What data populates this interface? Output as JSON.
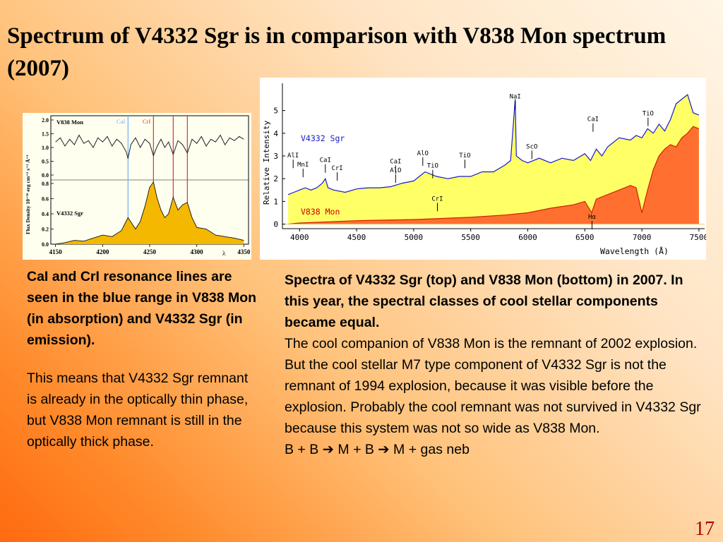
{
  "slide": {
    "title": "Spectrum of  V4332 Sgr is in comparison with V838 Mon spectrum (2007)",
    "number": "17"
  },
  "left_text": {
    "bold": "CaI  and CrI resonance lines are seen in the blue range in V838 Mon (in absorption) and V4332 Sgr (in emission).",
    "normal": "This means that V4332 Sgr remnant is already in the optically thin phase, but V838 Mon remnant is still in the optically thick phase."
  },
  "right_text": {
    "bold": "Spectra of V4332 Sgr  (top) and V838 Mon (bottom) in 2007. In this year, the spectral classes of cool stellar components became equal.",
    "body": "The cool companion of V838 Mon is the remnant of 2002 explosion. But the cool stellar M7 type component of V4332 Sgr is not the remnant of 1994 explosion, because it was visible before the explosion. Probably the cool remnant was not survived in V4332 Sgr because this system was not so wide as V838 Mon.",
    "formula": "B + B ➔ M + B ➔ M + gas neb"
  },
  "chart_data": [
    {
      "type": "line",
      "xlabel": "λ",
      "ylabel": "Flux Density 10⁻¹⁶ erg cm⁻² s⁻¹ Å⁻¹",
      "xlim": [
        4145,
        4355
      ],
      "x_ticks": [
        "4150",
        "4200",
        "4250",
        "4300",
        "4350"
      ],
      "upper_y_ticks": [
        "2.0",
        "1.5",
        "1.0",
        "0.5",
        "0.0"
      ],
      "lower_y_ticks": [
        "0.8",
        "0.6",
        "0.4",
        "0.2",
        "0.0"
      ],
      "line_labels": [
        {
          "label": "CaI",
          "x": 4227,
          "color": "#6ab0ff"
        },
        {
          "label": "CrI",
          "x": 4254,
          "color": "#e03030"
        }
      ],
      "extra_lines": [
        {
          "x": 4275,
          "color": "#e03030"
        },
        {
          "x": 4290,
          "color": "#e03030"
        }
      ],
      "series": [
        {
          "name": "V838 Mon",
          "color": "#222222",
          "x": [
            4150,
            4155,
            4160,
            4165,
            4170,
            4175,
            4180,
            4185,
            4190,
            4195,
            4200,
            4205,
            4210,
            4215,
            4220,
            4225,
            4227,
            4230,
            4235,
            4240,
            4245,
            4250,
            4254,
            4258,
            4262,
            4266,
            4270,
            4275,
            4280,
            4285,
            4290,
            4295,
            4300,
            4305,
            4310,
            4315,
            4320,
            4325,
            4330,
            4335,
            4340,
            4345,
            4350
          ],
          "values": [
            1.2,
            1.35,
            1.05,
            1.3,
            1.1,
            1.45,
            1.15,
            1.25,
            1.0,
            1.35,
            1.2,
            1.4,
            1.05,
            1.3,
            1.15,
            0.85,
            0.6,
            1.1,
            1.35,
            1.0,
            1.3,
            1.15,
            0.7,
            1.05,
            1.3,
            1.0,
            1.2,
            0.75,
            1.25,
            1.1,
            0.8,
            1.3,
            1.15,
            1.4,
            1.05,
            1.3,
            1.2,
            1.45,
            1.1,
            1.35,
            1.25,
            1.4,
            1.3
          ]
        },
        {
          "name": "V4332 Sgr",
          "color": "#f5b800",
          "x": [
            4150,
            4160,
            4170,
            4180,
            4190,
            4200,
            4210,
            4220,
            4227,
            4235,
            4240,
            4245,
            4250,
            4254,
            4258,
            4262,
            4266,
            4270,
            4275,
            4280,
            4285,
            4290,
            4295,
            4300,
            4310,
            4320,
            4330,
            4340,
            4350
          ],
          "values": [
            0.0,
            0.02,
            0.05,
            0.04,
            0.08,
            0.12,
            0.1,
            0.18,
            0.35,
            0.2,
            0.3,
            0.5,
            0.75,
            0.82,
            0.6,
            0.45,
            0.35,
            0.4,
            0.62,
            0.45,
            0.52,
            0.55,
            0.35,
            0.22,
            0.2,
            0.12,
            0.1,
            0.08,
            0.05
          ]
        }
      ]
    },
    {
      "type": "area",
      "xlabel": "Wavelength (Å)",
      "ylabel": "Relative Intensity",
      "xlim": [
        3850,
        7550
      ],
      "ylim": [
        -0.2,
        6.2
      ],
      "x_ticks": [
        "4000",
        "4500",
        "5000",
        "5500",
        "6000",
        "6500",
        "7000",
        "7500"
      ],
      "y_ticks": [
        "0",
        "1",
        "2",
        "3",
        "4",
        "5"
      ],
      "series": [
        {
          "name": "V4332 Sgr",
          "color": "#1a1acc",
          "fill": "#ffff66",
          "x": [
            3900,
            3950,
            4000,
            4050,
            4100,
            4150,
            4200,
            4226,
            4250,
            4300,
            4400,
            4500,
            4600,
            4700,
            4800,
            4900,
            5000,
            5050,
            5100,
            5200,
            5300,
            5400,
            5500,
            5600,
            5700,
            5800,
            5850,
            5890,
            5900,
            5950,
            6000,
            6050,
            6100,
            6200,
            6300,
            6400,
            6500,
            6550,
            6600,
            6650,
            6700,
            6800,
            6900,
            6950,
            7000,
            7050,
            7100,
            7150,
            7200,
            7250,
            7300,
            7350,
            7400,
            7450,
            7500
          ],
          "values": [
            1.3,
            1.4,
            1.5,
            1.6,
            1.5,
            1.6,
            1.8,
            2.0,
            1.6,
            1.5,
            1.4,
            1.55,
            1.6,
            1.6,
            1.65,
            1.8,
            1.9,
            2.1,
            2.3,
            2.1,
            2.0,
            2.1,
            2.1,
            2.3,
            2.3,
            2.6,
            2.8,
            5.5,
            3.0,
            2.8,
            2.7,
            2.8,
            2.9,
            2.7,
            2.9,
            2.8,
            3.1,
            2.8,
            3.3,
            3.0,
            3.4,
            3.8,
            3.7,
            3.9,
            3.8,
            4.2,
            4.0,
            4.4,
            4.1,
            4.6,
            5.3,
            5.5,
            5.7,
            4.9,
            4.8
          ]
        },
        {
          "name": "V838 Mon",
          "color": "#cc2200",
          "fill": "#ff7030",
          "x": [
            3900,
            4000,
            4500,
            5000,
            5500,
            5800,
            6000,
            6200,
            6400,
            6500,
            6560,
            6600,
            6700,
            6800,
            6900,
            6950,
            7000,
            7050,
            7100,
            7150,
            7200,
            7250,
            7300,
            7350,
            7400,
            7450,
            7500
          ],
          "values": [
            0.0,
            0.05,
            0.15,
            0.2,
            0.3,
            0.4,
            0.5,
            0.7,
            0.85,
            1.0,
            0.5,
            1.1,
            1.3,
            1.5,
            1.7,
            1.6,
            0.5,
            1.5,
            2.4,
            3.0,
            3.3,
            3.5,
            3.4,
            3.8,
            4.0,
            4.3,
            4.2
          ]
        }
      ],
      "annotations": [
        {
          "label": "NaI",
          "x": 5890,
          "y": 5.5
        },
        {
          "label": "CaI",
          "x": 6572,
          "y": 4.5
        },
        {
          "label": "TiO",
          "x": 7054,
          "y": 4.75
        },
        {
          "label": "ScO",
          "x": 6036,
          "y": 3.3
        },
        {
          "label": "TiO",
          "x": 5449,
          "y": 2.9
        },
        {
          "label": "AlO",
          "x": 5080,
          "y": 3.0
        },
        {
          "label": "TiO",
          "x": 5167,
          "y": 2.45
        },
        {
          "label": "CrI",
          "x": 5208,
          "y": 1.0
        },
        {
          "label": "CaI",
          "x": 4226,
          "y": 2.7
        },
        {
          "label": "AlO",
          "x": 4842,
          "y": 2.25
        },
        {
          "label": "CaI",
          "x": 4842,
          "y": 2.65
        },
        {
          "label": "AlI",
          "x": 3944,
          "y": 2.9
        },
        {
          "label": "MnI",
          "x": 4031,
          "y": 2.5
        },
        {
          "label": "CrI",
          "x": 4330,
          "y": 2.35
        },
        {
          "label": "Hα",
          "x": 6563,
          "y": 0.2
        }
      ]
    }
  ]
}
